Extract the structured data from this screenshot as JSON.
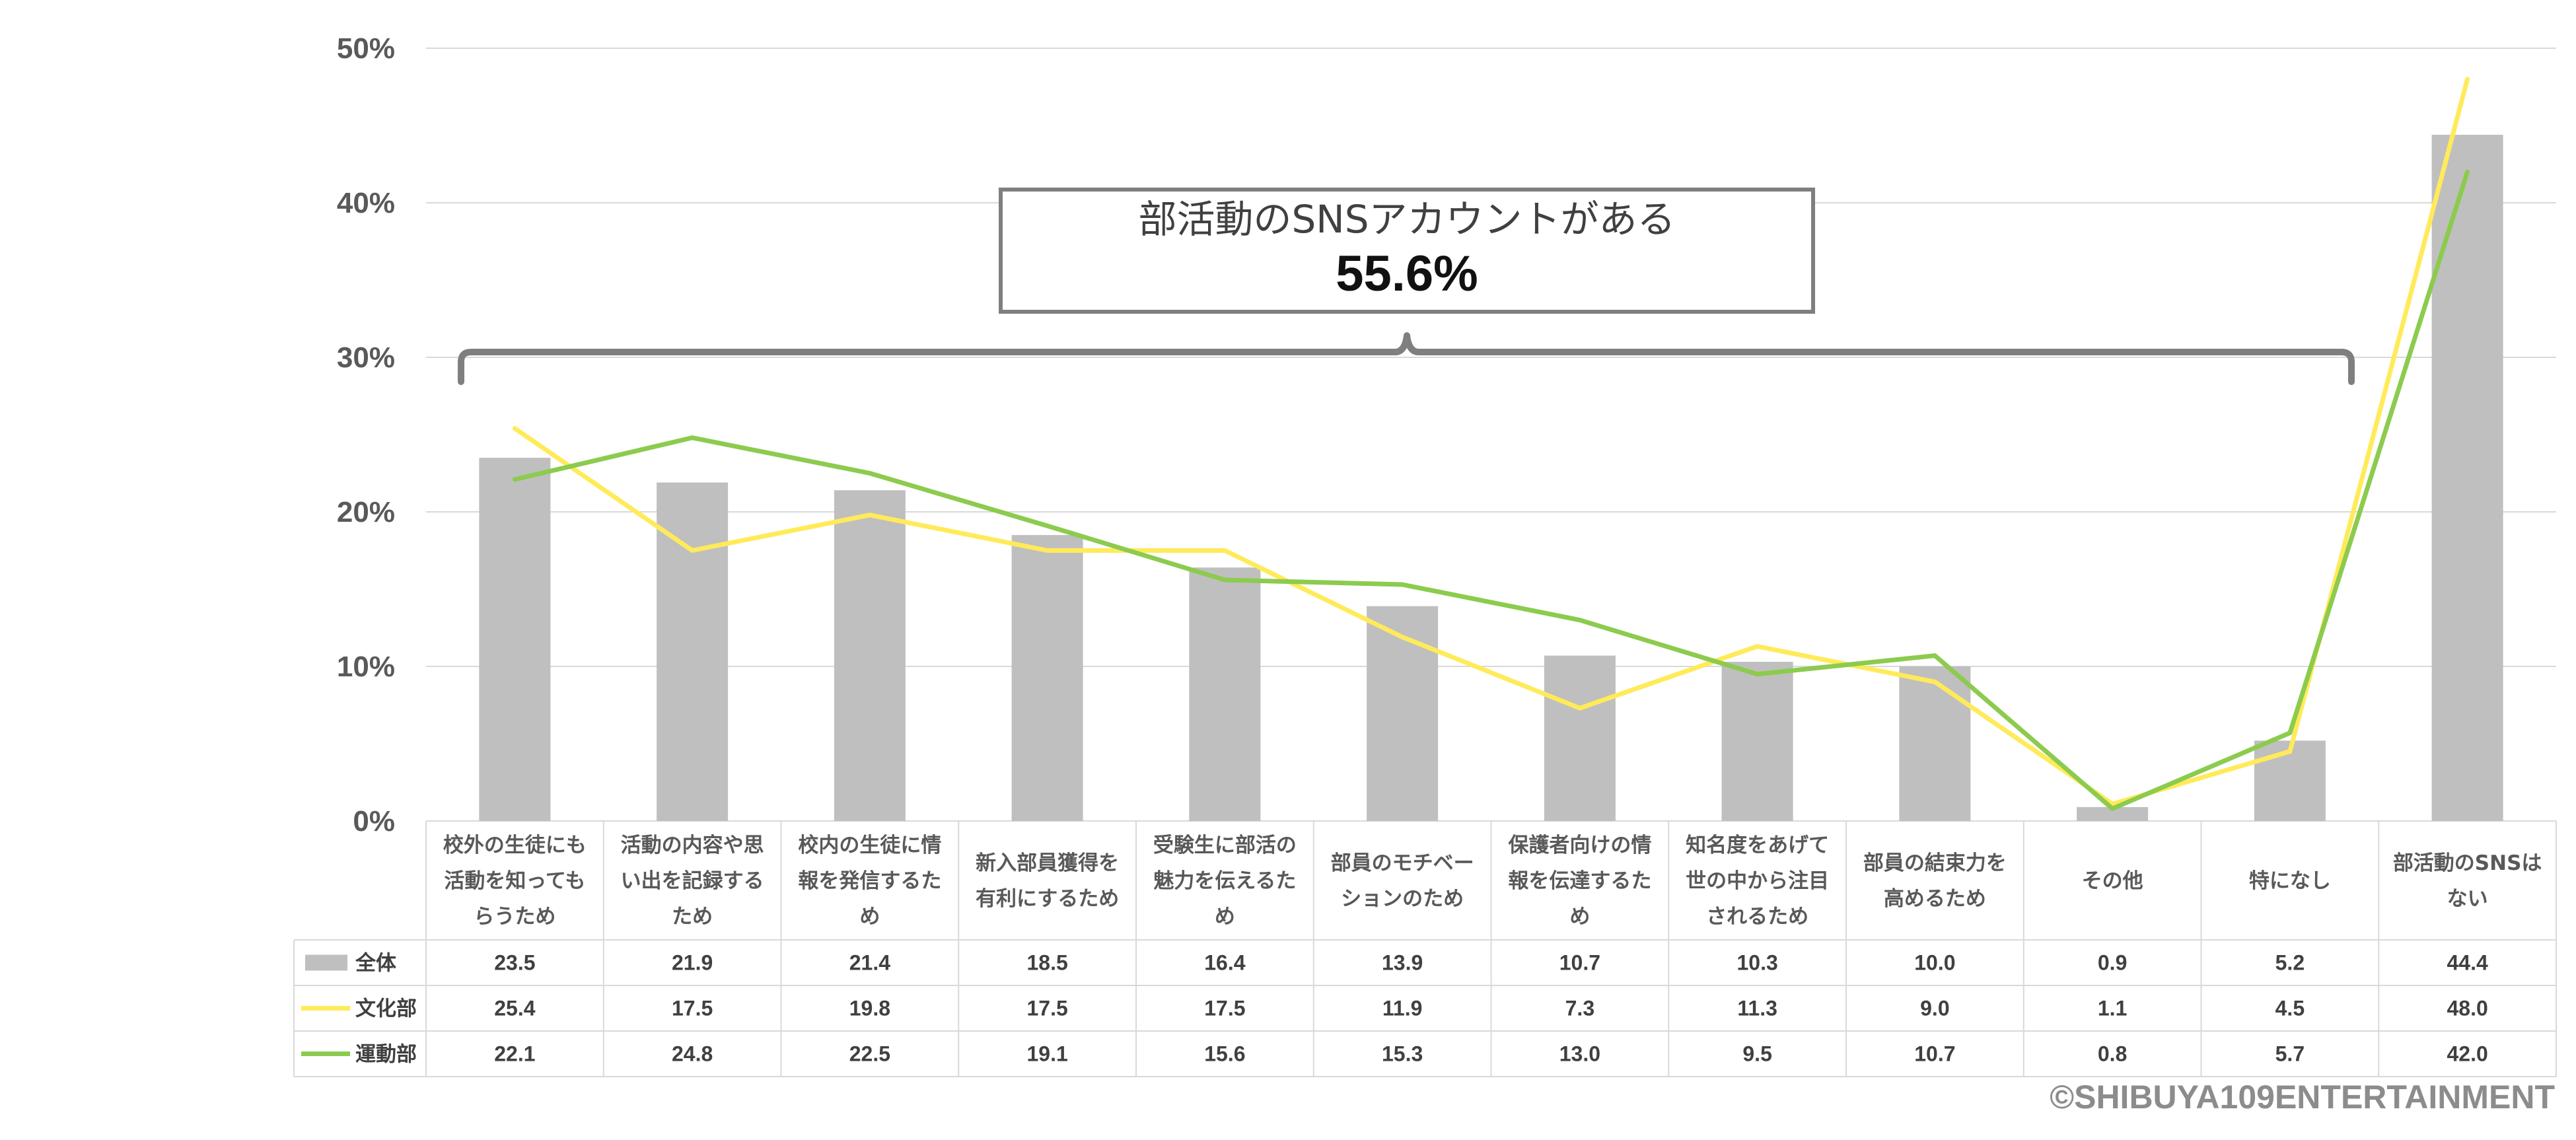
{
  "chart_data": {
    "type": "bar",
    "categories": [
      [
        "校外の生徒にも",
        "活動を知っても",
        "らうため"
      ],
      [
        "活動の内容や思",
        "い出を記録する",
        "ため"
      ],
      [
        "校内の生徒に情",
        "報を発信するた",
        "め"
      ],
      [
        "新入部員獲得を",
        "有利にするため"
      ],
      [
        "受験生に部活の",
        "魅力を伝えるた",
        "め"
      ],
      [
        "部員のモチベー",
        "ションのため"
      ],
      [
        "保護者向けの情",
        "報を伝達するた",
        "め"
      ],
      [
        "知名度をあげて",
        "世の中から注目",
        "されるため"
      ],
      [
        "部員の結束力を",
        "高めるため"
      ],
      [
        "その他"
      ],
      [
        "特になし"
      ],
      [
        "部活動のSNSは",
        "ない"
      ]
    ],
    "series": [
      {
        "name": "全体",
        "kind": "bar",
        "color": "#bfbfbf",
        "values": [
          23.5,
          21.9,
          21.4,
          18.5,
          16.4,
          13.9,
          10.7,
          10.3,
          10.0,
          0.9,
          5.2,
          44.4
        ]
      },
      {
        "name": "文化部",
        "kind": "line",
        "color": "#ffeb5a",
        "values": [
          25.4,
          17.5,
          19.8,
          17.5,
          17.5,
          11.9,
          7.3,
          11.3,
          9.0,
          1.1,
          4.5,
          48.0
        ]
      },
      {
        "name": "運動部",
        "kind": "line",
        "color": "#8ccb4e",
        "values": [
          22.1,
          24.8,
          22.5,
          19.1,
          15.6,
          15.3,
          13.0,
          9.5,
          10.7,
          0.8,
          5.7,
          42.0
        ]
      }
    ],
    "y_ticks": [
      "0%",
      "10%",
      "20%",
      "30%",
      "40%",
      "50%"
    ],
    "ylim": [
      0,
      50
    ],
    "grid": true,
    "data_table": true,
    "annotation": {
      "label": "部活動のSNSアカウントがある",
      "value": "55.6%",
      "bracket_span": "first 11 categories"
    }
  },
  "footer": {
    "copyright": "©SHIBUYA109ENTERTAINMENT"
  }
}
